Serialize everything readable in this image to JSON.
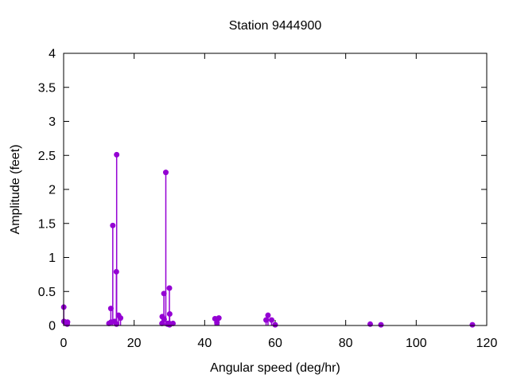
{
  "figure": {
    "background": "#ffffff"
  },
  "chart_data": {
    "type": "stem",
    "title": "Station 9444900",
    "xlabel": "Angular speed (deg/hr)",
    "ylabel": "Amplitude (feet)",
    "xlim": [
      0,
      120
    ],
    "ylim": [
      0,
      4
    ],
    "xtick_values": [
      0,
      20,
      40,
      60,
      80,
      100,
      120
    ],
    "xtick_labels": [
      "0",
      "20",
      "40",
      "60",
      "80",
      "100",
      "120"
    ],
    "ytick_values": [
      0,
      0.5,
      1,
      1.5,
      2,
      2.5,
      3,
      3.5,
      4
    ],
    "ytick_labels": [
      "0",
      "0.5",
      "1",
      "1.5",
      "2",
      "2.5",
      "3",
      "3.5",
      "4"
    ],
    "grid": false,
    "legend": "none",
    "marker": "filled-circle",
    "series_color": "#9400D3",
    "frame_color": "#000000",
    "series": [
      {
        "name": "amplitude-stems",
        "points": [
          {
            "x": 0.041,
            "y": 0.27
          },
          {
            "x": 0.082,
            "y": 0.06
          },
          {
            "x": 0.544,
            "y": 0.04
          },
          {
            "x": 1.016,
            "y": 0.02
          },
          {
            "x": 1.098,
            "y": 0.05
          },
          {
            "x": 12.854,
            "y": 0.03
          },
          {
            "x": 13.399,
            "y": 0.25
          },
          {
            "x": 13.471,
            "y": 0.05
          },
          {
            "x": 13.943,
            "y": 1.47
          },
          {
            "x": 14.497,
            "y": 0.06
          },
          {
            "x": 14.959,
            "y": 0.79
          },
          {
            "x": 15.0,
            "y": 0.02
          },
          {
            "x": 15.041,
            "y": 2.51
          },
          {
            "x": 15.585,
            "y": 0.15
          },
          {
            "x": 16.139,
            "y": 0.11
          },
          {
            "x": 27.895,
            "y": 0.03
          },
          {
            "x": 27.968,
            "y": 0.13
          },
          {
            "x": 28.439,
            "y": 0.47
          },
          {
            "x": 28.512,
            "y": 0.09
          },
          {
            "x": 28.984,
            "y": 2.25
          },
          {
            "x": 29.456,
            "y": 0.02
          },
          {
            "x": 29.528,
            "y": 0.03
          },
          {
            "x": 29.959,
            "y": 0.03
          },
          {
            "x": 30.0,
            "y": 0.55
          },
          {
            "x": 30.041,
            "y": 0.01
          },
          {
            "x": 30.082,
            "y": 0.17
          },
          {
            "x": 31.016,
            "y": 0.03
          },
          {
            "x": 42.927,
            "y": 0.1
          },
          {
            "x": 43.476,
            "y": 0.04
          },
          {
            "x": 44.025,
            "y": 0.11
          },
          {
            "x": 57.424,
            "y": 0.08
          },
          {
            "x": 57.968,
            "y": 0.15
          },
          {
            "x": 58.984,
            "y": 0.08
          },
          {
            "x": 60.0,
            "y": 0.01
          },
          {
            "x": 86.952,
            "y": 0.02
          },
          {
            "x": 90.0,
            "y": 0.01
          },
          {
            "x": 115.936,
            "y": 0.01
          }
        ]
      }
    ]
  }
}
